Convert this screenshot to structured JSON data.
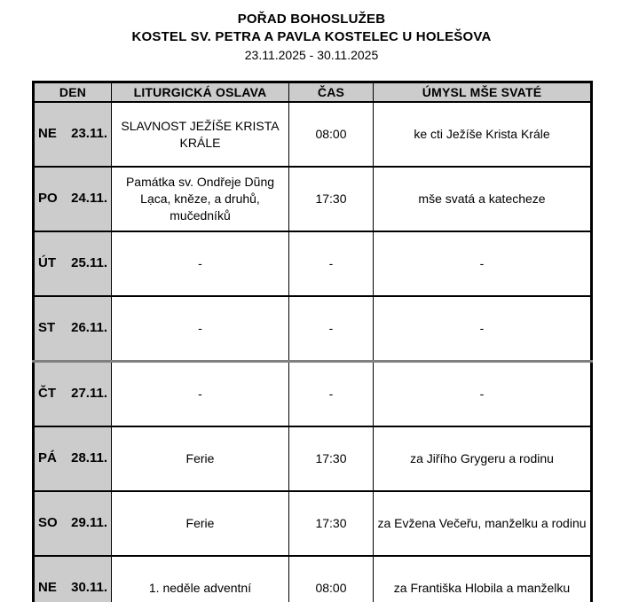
{
  "header": {
    "title": "POŘAD BOHOSLUŽEB",
    "subtitle": "KOSTEL SV. PETRA A PAVLA KOSTELEC U HOLEŠOVA",
    "date_range": "23.11.2025 - 30.11.2025"
  },
  "table": {
    "columns": [
      "DEN",
      "LITURGICKÁ OSLAVA",
      "ČAS",
      "ÚMYSL MŠE SVATÉ"
    ],
    "rows": [
      {
        "day": "NE",
        "date": "23.11.",
        "celebration": "SLAVNOST JEŽÍŠE KRISTA KRÁLE",
        "time": "08:00",
        "intention": "ke cti Ježíše Krista Krále"
      },
      {
        "day": "PO",
        "date": "24.11.",
        "celebration": "Památka sv. Ondřeje Dũng Lạca, kněze, a druhů, mučedníků",
        "time": "17:30",
        "intention": "mše svatá a katecheze"
      },
      {
        "day": "ÚT",
        "date": "25.11.",
        "celebration": "-",
        "time": "-",
        "intention": "-"
      },
      {
        "day": "ST",
        "date": "26.11.",
        "celebration": "-",
        "time": "-",
        "intention": "-"
      },
      {
        "day": "ČT",
        "date": "27.11.",
        "celebration": "-",
        "time": "-",
        "intention": "-"
      },
      {
        "day": "PÁ",
        "date": "28.11.",
        "celebration": "Ferie",
        "time": "17:30",
        "intention": "za Jiřího Grygeru a rodinu"
      },
      {
        "day": "SO",
        "date": "29.11.",
        "celebration": "Ferie",
        "time": "17:30",
        "intention": "za Evžena Večeřu, manželku a rodinu"
      },
      {
        "day": "NE",
        "date": "30.11.",
        "celebration": "1. neděle adventní",
        "time": "08:00",
        "intention": "za Františka Hlobila a manželku"
      }
    ]
  },
  "colors": {
    "header_bg": "#cccccc",
    "border": "#000000",
    "page_break_line": "#7f7f7f"
  }
}
